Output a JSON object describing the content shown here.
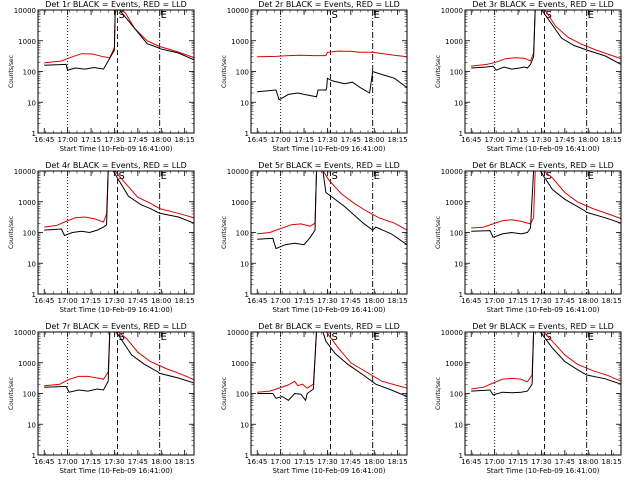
{
  "chart_data": {
    "type": "line",
    "layout": "3x3 grid of panels",
    "y_scale": "log",
    "ylim": [
      1,
      10000
    ],
    "yticks": [
      "1",
      "10",
      "100",
      "1000",
      "10000"
    ],
    "ylabel": "Counts/sec",
    "xticks": [
      "16:45",
      "17:00",
      "17:15",
      "17:30",
      "17:45",
      "18:00",
      "18:15"
    ],
    "xlabel": "Start Time (10-Feb-09 16:41:00)",
    "xlim_minutes_after_start": [
      0,
      100
    ],
    "series_colors": {
      "events": "#000000",
      "lld": "#e00000"
    },
    "marker_lines": [
      {
        "label": "",
        "time": "17:00",
        "style": "dotted"
      },
      {
        "label": "S",
        "time": "17:32",
        "style": "dashed"
      },
      {
        "label": "E",
        "time": "17:59",
        "style": "dashdot"
      }
    ],
    "panels": [
      {
        "title": "Det 1r BLACK = Events, RED = LLD",
        "events": [
          [
            4,
            160
          ],
          [
            18,
            170
          ],
          [
            19,
            110
          ],
          [
            24,
            130
          ],
          [
            30,
            120
          ],
          [
            36,
            135
          ],
          [
            42,
            120
          ],
          [
            44,
            180
          ],
          [
            49,
            500
          ],
          [
            49.5,
            11000
          ],
          [
            52,
            11000
          ],
          [
            70,
            800
          ],
          [
            77,
            600
          ],
          [
            78,
            550
          ],
          [
            90,
            400
          ],
          [
            100,
            240
          ]
        ],
        "lld": [
          [
            4,
            190
          ],
          [
            15,
            220
          ],
          [
            22,
            300
          ],
          [
            28,
            380
          ],
          [
            35,
            370
          ],
          [
            42,
            300
          ],
          [
            46,
            280
          ],
          [
            49,
            600
          ],
          [
            49.5,
            11000
          ],
          [
            53,
            11000
          ],
          [
            56,
            8000
          ],
          [
            62,
            2500
          ],
          [
            70,
            1000
          ],
          [
            78,
            650
          ],
          [
            90,
            430
          ],
          [
            100,
            280
          ]
        ]
      },
      {
        "title": "Det 2r BLACK = Events, RED = LLD",
        "events": [
          [
            4,
            22
          ],
          [
            16,
            25
          ],
          [
            18,
            12
          ],
          [
            24,
            18
          ],
          [
            30,
            20
          ],
          [
            34,
            18
          ],
          [
            42,
            15
          ],
          [
            43,
            25
          ],
          [
            48,
            25
          ],
          [
            48.5,
            30
          ],
          [
            49,
            60
          ],
          [
            52,
            50
          ],
          [
            56,
            45
          ],
          [
            60,
            40
          ],
          [
            65,
            45
          ],
          [
            70,
            30
          ],
          [
            76,
            20
          ],
          [
            78,
            100
          ],
          [
            84,
            80
          ],
          [
            92,
            60
          ],
          [
            100,
            30
          ]
        ],
        "lld": [
          [
            4,
            300
          ],
          [
            16,
            310
          ],
          [
            24,
            330
          ],
          [
            32,
            340
          ],
          [
            40,
            330
          ],
          [
            48,
            330
          ],
          [
            49,
            420
          ],
          [
            56,
            460
          ],
          [
            64,
            450
          ],
          [
            70,
            420
          ],
          [
            78,
            420
          ],
          [
            86,
            370
          ],
          [
            92,
            340
          ],
          [
            100,
            300
          ]
        ]
      },
      {
        "title": "Det 3r BLACK = Events, RED = LLD",
        "events": [
          [
            4,
            130
          ],
          [
            14,
            140
          ],
          [
            18,
            150
          ],
          [
            20,
            110
          ],
          [
            25,
            140
          ],
          [
            30,
            120
          ],
          [
            35,
            130
          ],
          [
            38,
            140
          ],
          [
            40,
            130
          ],
          [
            42,
            170
          ],
          [
            44,
            300
          ],
          [
            45,
            11000
          ],
          [
            49,
            11000
          ],
          [
            62,
            1200
          ],
          [
            70,
            700
          ],
          [
            78,
            500
          ],
          [
            90,
            320
          ],
          [
            100,
            170
          ]
        ],
        "lld": [
          [
            4,
            150
          ],
          [
            14,
            170
          ],
          [
            20,
            200
          ],
          [
            26,
            260
          ],
          [
            32,
            280
          ],
          [
            38,
            270
          ],
          [
            42,
            220
          ],
          [
            44,
            400
          ],
          [
            45,
            11000
          ],
          [
            49,
            11000
          ],
          [
            52,
            9000
          ],
          [
            58,
            3000
          ],
          [
            66,
            1300
          ],
          [
            74,
            800
          ],
          [
            84,
            500
          ],
          [
            100,
            260
          ]
        ]
      },
      {
        "title": "Det 4r BLACK = Events, RED = LLD",
        "events": [
          [
            4,
            120
          ],
          [
            15,
            130
          ],
          [
            17,
            80
          ],
          [
            22,
            100
          ],
          [
            28,
            110
          ],
          [
            33,
            100
          ],
          [
            38,
            120
          ],
          [
            42,
            150
          ],
          [
            44,
            180
          ],
          [
            45,
            11000
          ],
          [
            48,
            11000
          ],
          [
            58,
            1500
          ],
          [
            66,
            800
          ],
          [
            72,
            600
          ],
          [
            78,
            420
          ],
          [
            90,
            320
          ],
          [
            100,
            200
          ]
        ],
        "lld": [
          [
            4,
            150
          ],
          [
            12,
            170
          ],
          [
            18,
            230
          ],
          [
            24,
            300
          ],
          [
            30,
            320
          ],
          [
            36,
            280
          ],
          [
            42,
            220
          ],
          [
            44,
            400
          ],
          [
            45,
            11000
          ],
          [
            49,
            11000
          ],
          [
            56,
            4000
          ],
          [
            64,
            1400
          ],
          [
            72,
            900
          ],
          [
            78,
            600
          ],
          [
            90,
            420
          ],
          [
            100,
            300
          ]
        ]
      },
      {
        "title": "Det 5r BLACK = Events, RED = LLD",
        "events": [
          [
            4,
            60
          ],
          [
            14,
            65
          ],
          [
            16,
            30
          ],
          [
            22,
            40
          ],
          [
            28,
            45
          ],
          [
            34,
            40
          ],
          [
            38,
            70
          ],
          [
            41,
            120
          ],
          [
            42,
            11000
          ],
          [
            46,
            11000
          ],
          [
            48,
            2000
          ],
          [
            60,
            700
          ],
          [
            72,
            200
          ],
          [
            78,
            120
          ],
          [
            80,
            150
          ],
          [
            90,
            90
          ],
          [
            100,
            40
          ]
        ],
        "lld": [
          [
            4,
            90
          ],
          [
            12,
            100
          ],
          [
            20,
            140
          ],
          [
            26,
            180
          ],
          [
            32,
            190
          ],
          [
            38,
            160
          ],
          [
            41,
            200
          ],
          [
            42,
            11000
          ],
          [
            46,
            11000
          ],
          [
            50,
            5000
          ],
          [
            58,
            1800
          ],
          [
            66,
            900
          ],
          [
            74,
            500
          ],
          [
            82,
            300
          ],
          [
            92,
            200
          ],
          [
            100,
            120
          ]
        ]
      },
      {
        "title": "Det 6r BLACK = Events, RED = LLD",
        "events": [
          [
            4,
            110
          ],
          [
            16,
            115
          ],
          [
            18,
            70
          ],
          [
            24,
            90
          ],
          [
            30,
            100
          ],
          [
            36,
            90
          ],
          [
            40,
            100
          ],
          [
            42,
            140
          ],
          [
            44,
            11000
          ],
          [
            48,
            11000
          ],
          [
            56,
            2500
          ],
          [
            64,
            1200
          ],
          [
            70,
            800
          ],
          [
            77,
            500
          ],
          [
            78,
            450
          ],
          [
            90,
            300
          ],
          [
            100,
            200
          ]
        ],
        "lld": [
          [
            4,
            140
          ],
          [
            12,
            150
          ],
          [
            18,
            190
          ],
          [
            24,
            240
          ],
          [
            30,
            260
          ],
          [
            36,
            230
          ],
          [
            42,
            190
          ],
          [
            44,
            300
          ],
          [
            45,
            11000
          ],
          [
            50,
            11000
          ],
          [
            56,
            6000
          ],
          [
            64,
            2000
          ],
          [
            72,
            1000
          ],
          [
            82,
            600
          ],
          [
            92,
            400
          ],
          [
            100,
            280
          ]
        ]
      },
      {
        "title": "Det 7r BLACK = Events, RED = LLD",
        "events": [
          [
            4,
            160
          ],
          [
            18,
            170
          ],
          [
            20,
            110
          ],
          [
            26,
            130
          ],
          [
            32,
            120
          ],
          [
            38,
            140
          ],
          [
            42,
            130
          ],
          [
            45,
            250
          ],
          [
            46,
            11000
          ],
          [
            50,
            11000
          ],
          [
            60,
            1800
          ],
          [
            68,
            900
          ],
          [
            77,
            500
          ],
          [
            78,
            450
          ],
          [
            90,
            320
          ],
          [
            100,
            220
          ]
        ],
        "lld": [
          [
            4,
            180
          ],
          [
            14,
            200
          ],
          [
            20,
            290
          ],
          [
            26,
            360
          ],
          [
            32,
            360
          ],
          [
            38,
            320
          ],
          [
            42,
            290
          ],
          [
            45,
            500
          ],
          [
            46,
            11000
          ],
          [
            51,
            11000
          ],
          [
            57,
            6000
          ],
          [
            64,
            2200
          ],
          [
            72,
            1100
          ],
          [
            82,
            650
          ],
          [
            92,
            420
          ],
          [
            100,
            280
          ]
        ]
      },
      {
        "title": "Det 8r BLACK = Events, RED = LLD",
        "events": [
          [
            4,
            100
          ],
          [
            14,
            100
          ],
          [
            16,
            70
          ],
          [
            20,
            80
          ],
          [
            24,
            60
          ],
          [
            28,
            100
          ],
          [
            32,
            95
          ],
          [
            35,
            60
          ],
          [
            36,
            100
          ],
          [
            40,
            140
          ],
          [
            42,
            11000
          ],
          [
            46,
            11000
          ],
          [
            48,
            5000
          ],
          [
            54,
            2000
          ],
          [
            62,
            900
          ],
          [
            72,
            400
          ],
          [
            80,
            200
          ],
          [
            90,
            130
          ],
          [
            100,
            80
          ]
        ],
        "lld": [
          [
            4,
            110
          ],
          [
            12,
            120
          ],
          [
            18,
            150
          ],
          [
            24,
            190
          ],
          [
            28,
            250
          ],
          [
            30,
            180
          ],
          [
            33,
            200
          ],
          [
            36,
            150
          ],
          [
            40,
            200
          ],
          [
            42,
            11000
          ],
          [
            48,
            11000
          ],
          [
            56,
            3000
          ],
          [
            64,
            1000
          ],
          [
            74,
            500
          ],
          [
            84,
            250
          ],
          [
            100,
            150
          ]
        ]
      },
      {
        "title": "Det 9r BLACK = Events, RED = LLD",
        "events": [
          [
            4,
            120
          ],
          [
            16,
            130
          ],
          [
            18,
            90
          ],
          [
            24,
            110
          ],
          [
            30,
            105
          ],
          [
            36,
            110
          ],
          [
            40,
            120
          ],
          [
            43,
            200
          ],
          [
            44,
            11000
          ],
          [
            48,
            11000
          ],
          [
            56,
            3000
          ],
          [
            64,
            1100
          ],
          [
            72,
            600
          ],
          [
            78,
            400
          ],
          [
            90,
            300
          ],
          [
            100,
            200
          ]
        ],
        "lld": [
          [
            4,
            140
          ],
          [
            12,
            160
          ],
          [
            18,
            220
          ],
          [
            24,
            290
          ],
          [
            30,
            310
          ],
          [
            36,
            290
          ],
          [
            40,
            240
          ],
          [
            43,
            400
          ],
          [
            44,
            11000
          ],
          [
            50,
            11000
          ],
          [
            56,
            5000
          ],
          [
            64,
            1800
          ],
          [
            72,
            900
          ],
          [
            82,
            550
          ],
          [
            92,
            380
          ],
          [
            100,
            250
          ]
        ]
      }
    ]
  }
}
